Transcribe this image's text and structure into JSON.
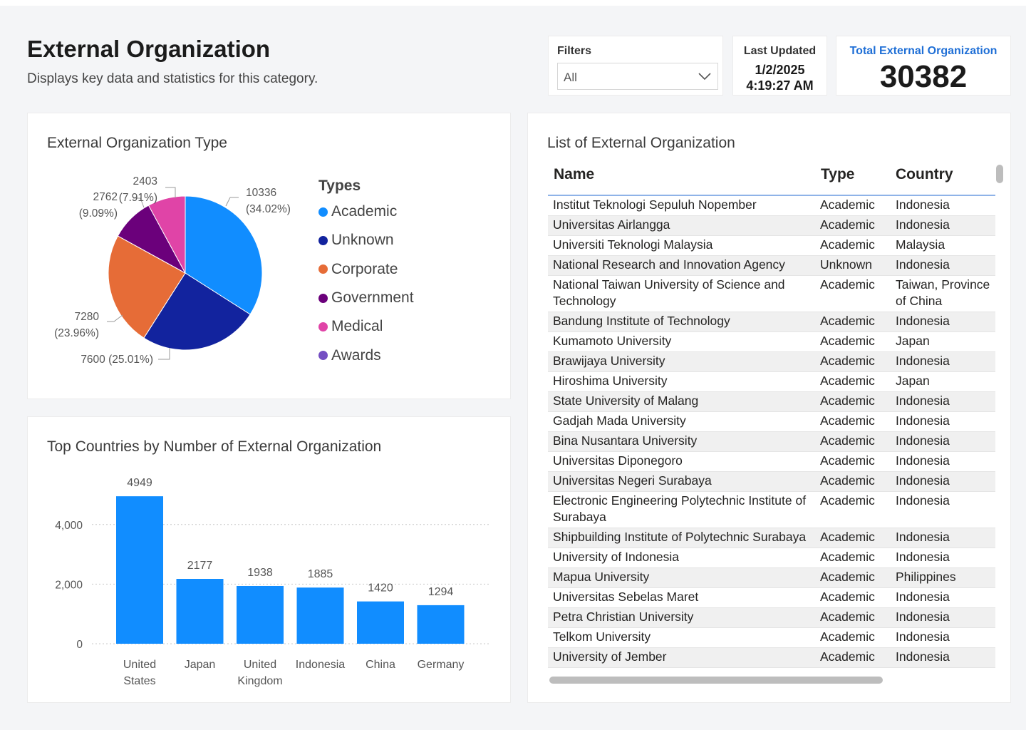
{
  "header": {
    "title": "External Organization",
    "subtitle": "Displays key data and statistics for this category."
  },
  "filters": {
    "label": "Filters",
    "value": "All"
  },
  "last_updated": {
    "label": "Last Updated",
    "date": "1/2/2025",
    "time": "4:19:27 AM"
  },
  "total": {
    "label": "Total External Organization",
    "value": "30382"
  },
  "colors": {
    "academic": "#118DFF",
    "unknown": "#12239E",
    "corporate": "#E66C37",
    "government": "#6B007B",
    "medical": "#E044A7",
    "awards": "#744EC2",
    "bar": "#118DFF"
  },
  "pie": {
    "title": "External Organization Type",
    "legend_title": "Types",
    "legend": [
      "Academic",
      "Unknown",
      "Corporate",
      "Government",
      "Medical",
      "Awards"
    ],
    "labels": {
      "academic": "10336",
      "academic_pct": "(34.02%)",
      "unknown": "7600 (25.01%)",
      "corporate": "7280",
      "corporate_pct": "(23.96%)",
      "government": "2762",
      "government_pct": "(9.09%)",
      "medical": "2403",
      "medical_pct": "(7.91%)"
    }
  },
  "bar": {
    "title": "Top Countries by Number of External Organization",
    "ticks": [
      "0",
      "2,000",
      "4,000"
    ],
    "categories": [
      [
        "United",
        "States"
      ],
      [
        "Japan"
      ],
      [
        "United",
        "Kingdom"
      ],
      [
        "Indonesia"
      ],
      [
        "China"
      ],
      [
        "Germany"
      ]
    ],
    "value_labels": [
      "4949",
      "2177",
      "1938",
      "1885",
      "1420",
      "1294"
    ]
  },
  "chart_data": [
    {
      "type": "pie",
      "title": "External Organization Type",
      "legend_title": "Types",
      "legend_placement": "right",
      "categories": [
        "Academic",
        "Unknown",
        "Corporate",
        "Government",
        "Medical"
      ],
      "values": [
        10336,
        7600,
        7280,
        2762,
        2403
      ],
      "percentages": [
        34.02,
        25.01,
        23.96,
        9.09,
        7.91
      ]
    },
    {
      "type": "bar",
      "title": "Top Countries by Number of External Organization",
      "categories": [
        "United States",
        "Japan",
        "United Kingdom",
        "Indonesia",
        "China",
        "Germany"
      ],
      "values": [
        4949,
        2177,
        1938,
        1885,
        1420,
        1294
      ],
      "ylim": [
        0,
        5000
      ],
      "yticks": [
        0,
        2000,
        4000
      ],
      "grid": true
    }
  ],
  "list": {
    "title": "List of External Organization",
    "columns": {
      "name": "Name",
      "type": "Type",
      "country": "Country"
    },
    "rows": [
      [
        "Institut Teknologi Sepuluh Nopember",
        "Academic",
        "Indonesia"
      ],
      [
        "Universitas Airlangga",
        "Academic",
        "Indonesia"
      ],
      [
        "Universiti Teknologi Malaysia",
        "Academic",
        "Malaysia"
      ],
      [
        "National Research and Innovation Agency",
        "Unknown",
        "Indonesia"
      ],
      [
        "National Taiwan University of Science and Technology",
        "Academic",
        "Taiwan, Province of China"
      ],
      [
        "Bandung Institute of Technology",
        "Academic",
        "Indonesia"
      ],
      [
        "Kumamoto University",
        "Academic",
        "Japan"
      ],
      [
        "Brawijaya University",
        "Academic",
        "Indonesia"
      ],
      [
        "Hiroshima University",
        "Academic",
        "Japan"
      ],
      [
        "State University of Malang",
        "Academic",
        "Indonesia"
      ],
      [
        "Gadjah Mada University",
        "Academic",
        "Indonesia"
      ],
      [
        "Bina Nusantara University",
        "Academic",
        "Indonesia"
      ],
      [
        "Universitas Diponegoro",
        "Academic",
        "Indonesia"
      ],
      [
        "Universitas Negeri Surabaya",
        "Academic",
        "Indonesia"
      ],
      [
        "Electronic Engineering Polytechnic Institute of Surabaya",
        "Academic",
        "Indonesia"
      ],
      [
        "Shipbuilding Institute of Polytechnic Surabaya",
        "Academic",
        "Indonesia"
      ],
      [
        "University of Indonesia",
        "Academic",
        "Indonesia"
      ],
      [
        "Mapua University",
        "Academic",
        "Philippines"
      ],
      [
        "Universitas Sebelas Maret",
        "Academic",
        "Indonesia"
      ],
      [
        "Petra Christian University",
        "Academic",
        "Indonesia"
      ],
      [
        "Telkom University",
        "Academic",
        "Indonesia"
      ],
      [
        "University of Jember",
        "Academic",
        "Indonesia"
      ]
    ]
  }
}
